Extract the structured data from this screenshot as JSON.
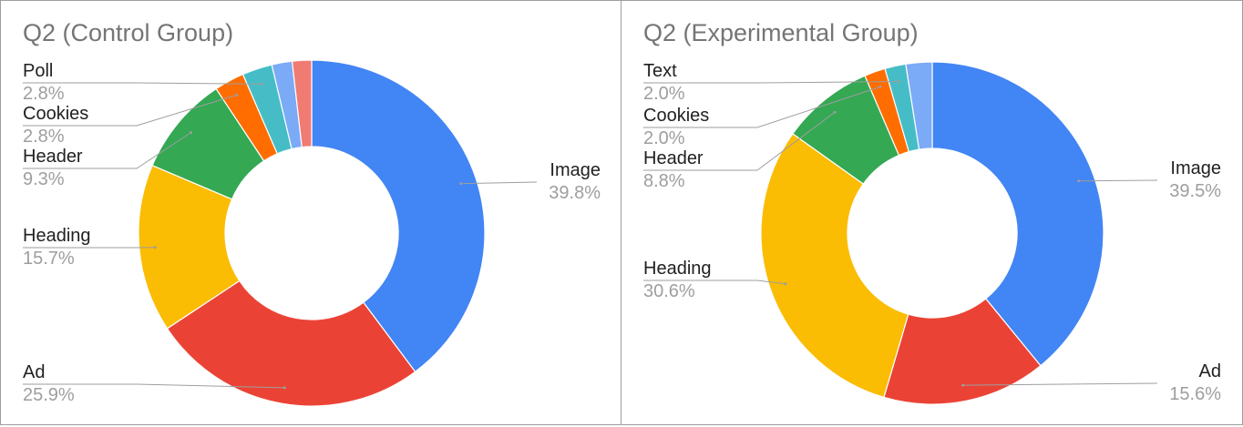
{
  "chart_data": [
    {
      "type": "pie",
      "donut": true,
      "title": "Q2 (Control Group)",
      "slices": [
        {
          "label": "Image",
          "value": 39.8,
          "display": "39.8%",
          "color": "#4285F4"
        },
        {
          "label": "Ad",
          "value": 25.9,
          "display": "25.9%",
          "color": "#EA4335"
        },
        {
          "label": "Heading",
          "value": 15.7,
          "display": "15.7%",
          "color": "#FBBC04"
        },
        {
          "label": "Header",
          "value": 9.3,
          "display": "9.3%",
          "color": "#34A853"
        },
        {
          "label": "Cookies",
          "value": 2.8,
          "display": "2.8%",
          "color": "#FF6D01"
        },
        {
          "label": "Poll",
          "value": 2.8,
          "display": "2.8%",
          "color": "#46BDC6"
        },
        {
          "label": "",
          "value": 1.9,
          "display": "",
          "color": "#7BAAF7"
        },
        {
          "label": "",
          "value": 1.8,
          "display": "",
          "color": "#F07B72"
        }
      ]
    },
    {
      "type": "pie",
      "donut": true,
      "title": "Q2 (Experimental Group)",
      "slices": [
        {
          "label": "Image",
          "value": 39.5,
          "display": "39.5%",
          "color": "#4285F4"
        },
        {
          "label": "Ad",
          "value": 15.6,
          "display": "15.6%",
          "color": "#EA4335"
        },
        {
          "label": "Heading",
          "value": 30.6,
          "display": "30.6%",
          "color": "#FBBC04"
        },
        {
          "label": "Header",
          "value": 8.8,
          "display": "8.8%",
          "color": "#34A853"
        },
        {
          "label": "Cookies",
          "value": 2.0,
          "display": "2.0%",
          "color": "#FF6D01"
        },
        {
          "label": "Text",
          "value": 2.0,
          "display": "2.0%",
          "color": "#46BDC6"
        },
        {
          "label": "",
          "value": 2.5,
          "display": "",
          "color": "#7BAAF7"
        }
      ]
    }
  ]
}
